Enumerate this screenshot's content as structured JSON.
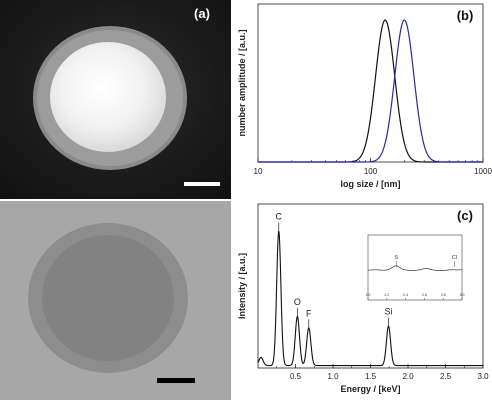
{
  "panel_a": {
    "label": "(a)"
  },
  "chart_data": [
    {
      "id": "b",
      "type": "line",
      "panel_label": "(b)",
      "xlabel": "log size / [nm]",
      "ylabel": "number amplitude / [a.u.]",
      "xscale": "log",
      "xlim": [
        10,
        1000
      ],
      "x_ticks": [
        "10",
        "100",
        "1000"
      ],
      "series": [
        {
          "color": "#111111",
          "shape": "peak",
          "peak_x": 135,
          "sigma_log10": 0.085,
          "amplitude": 1.0
        },
        {
          "color": "#2a2aa0",
          "shape": "peak",
          "peak_x": 200,
          "sigma_log10": 0.085,
          "amplitude": 1.0
        }
      ]
    },
    {
      "id": "c",
      "type": "line",
      "panel_label": "(c)",
      "xlabel": "Energy / [keV]",
      "ylabel": "Intensity / [a.u.]",
      "xlim": [
        0,
        3.0
      ],
      "x_ticks": [
        "0.5",
        "1.0",
        "1.5",
        "2.0",
        "2.5",
        "3.0"
      ],
      "peaks": [
        {
          "label": "C",
          "x": 0.277,
          "height": 0.82
        },
        {
          "label": "O",
          "x": 0.525,
          "height": 0.3
        },
        {
          "label": "F",
          "x": 0.677,
          "height": 0.23
        },
        {
          "label": "Si",
          "x": 1.74,
          "height": 0.24
        }
      ],
      "inset": {
        "annotations": [
          "S",
          "Cl"
        ],
        "x_ticks": [
          "2.0",
          "2.2",
          "2.4",
          "2.6",
          "2.8",
          "3.0"
        ]
      }
    }
  ]
}
